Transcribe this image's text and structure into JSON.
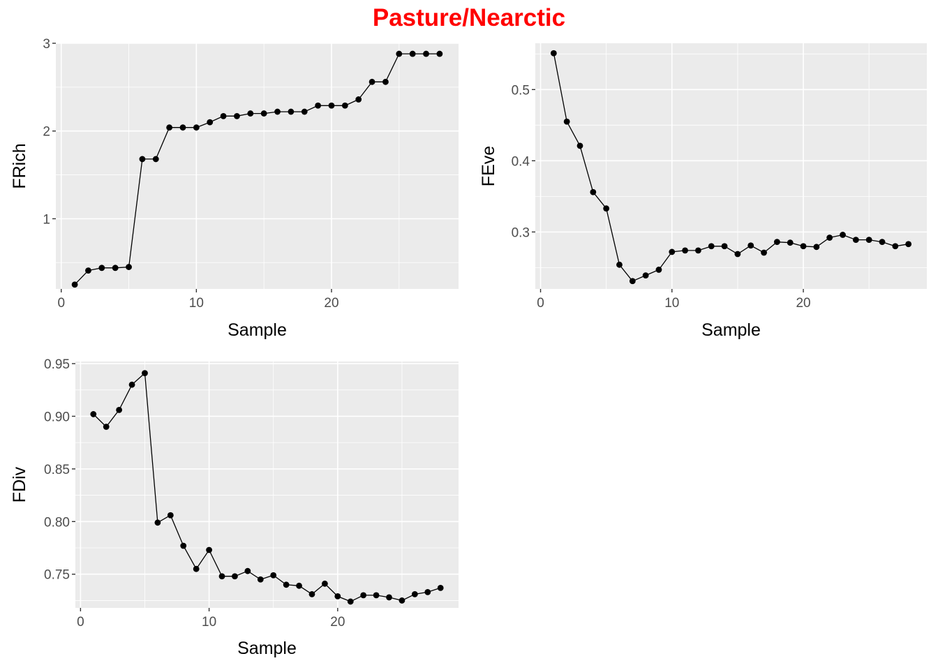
{
  "title": "Pasture/Nearctic",
  "colors": {
    "title": "#ff0000",
    "panel": "#ebebeb",
    "grid": "#ffffff",
    "marks": "#000000"
  },
  "chart_data": [
    {
      "type": "line",
      "xlabel": "Sample",
      "ylabel": "FRich",
      "xlim": [
        -0.4,
        29.4
      ],
      "ylim": [
        0.2,
        3.0
      ],
      "xticks": [
        0,
        10,
        20
      ],
      "yticks": [
        1,
        2,
        3
      ],
      "x": [
        1,
        2,
        3,
        4,
        5,
        6,
        7,
        8,
        9,
        10,
        11,
        12,
        13,
        14,
        15,
        16,
        17,
        18,
        19,
        20,
        21,
        22,
        23,
        24,
        25,
        26,
        27,
        28
      ],
      "y": [
        0.25,
        0.41,
        0.44,
        0.44,
        0.45,
        1.68,
        1.68,
        2.04,
        2.04,
        2.04,
        2.1,
        2.17,
        2.17,
        2.2,
        2.2,
        2.22,
        2.22,
        2.22,
        2.29,
        2.29,
        2.29,
        2.36,
        2.56,
        2.56,
        2.88,
        2.88,
        2.88,
        2.88
      ]
    },
    {
      "type": "line",
      "xlabel": "Sample",
      "ylabel": "FEve",
      "xlim": [
        -0.4,
        29.4
      ],
      "ylim": [
        0.22,
        0.565
      ],
      "xticks": [
        0,
        10,
        20
      ],
      "yticks": [
        0.3,
        0.4,
        0.5
      ],
      "x": [
        1,
        2,
        3,
        4,
        5,
        6,
        7,
        8,
        9,
        10,
        11,
        12,
        13,
        14,
        15,
        16,
        17,
        18,
        19,
        20,
        21,
        22,
        23,
        24,
        25,
        26,
        27,
        28
      ],
      "y": [
        0.551,
        0.455,
        0.421,
        0.356,
        0.333,
        0.254,
        0.231,
        0.239,
        0.247,
        0.272,
        0.274,
        0.274,
        0.28,
        0.28,
        0.269,
        0.281,
        0.271,
        0.286,
        0.285,
        0.28,
        0.279,
        0.292,
        0.296,
        0.289,
        0.289,
        0.286,
        0.28,
        0.283
      ]
    },
    {
      "type": "line",
      "xlabel": "Sample",
      "ylabel": "FDiv",
      "xlim": [
        -0.4,
        29.4
      ],
      "ylim": [
        0.718,
        0.952
      ],
      "xticks": [
        0,
        10,
        20
      ],
      "yticks": [
        0.75,
        0.8,
        0.85,
        0.9,
        0.95
      ],
      "ytick_labels": [
        "0.75",
        "0.80",
        "0.85",
        "0.90",
        "0.95"
      ],
      "x": [
        1,
        2,
        3,
        4,
        5,
        6,
        7,
        8,
        9,
        10,
        11,
        12,
        13,
        14,
        15,
        16,
        17,
        18,
        19,
        20,
        21,
        22,
        23,
        24,
        25,
        26,
        27,
        28
      ],
      "y": [
        0.902,
        0.89,
        0.906,
        0.93,
        0.941,
        0.799,
        0.806,
        0.777,
        0.755,
        0.773,
        0.748,
        0.748,
        0.753,
        0.745,
        0.749,
        0.74,
        0.739,
        0.731,
        0.741,
        0.729,
        0.724,
        0.73,
        0.73,
        0.728,
        0.725,
        0.731,
        0.733,
        0.737
      ]
    }
  ]
}
